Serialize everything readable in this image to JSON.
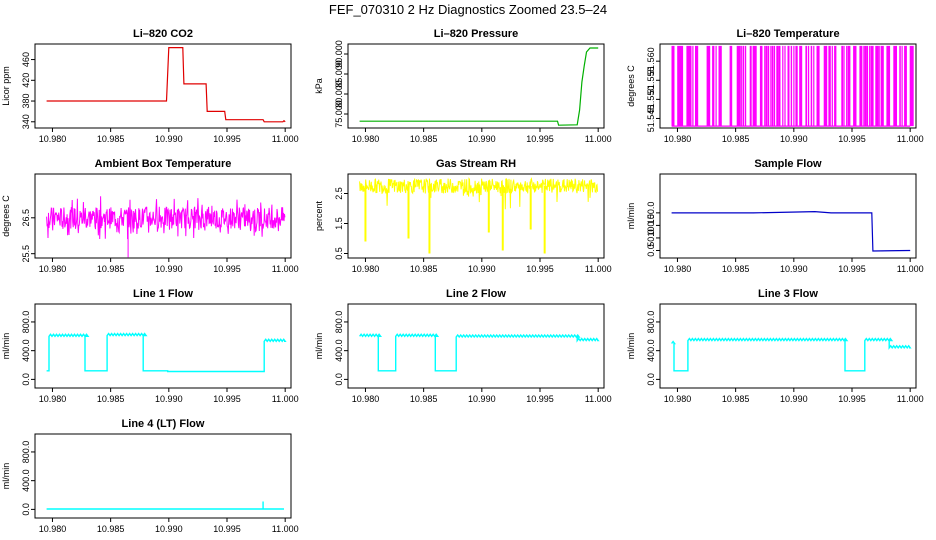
{
  "figure": {
    "title": "FEF_070310  2 Hz Diagnostics Zoomed 23.5–24"
  },
  "colors": {
    "red": "#e00000",
    "green": "#00b000",
    "magenta": "#ff00ff",
    "yellow": "#ffff00",
    "blue": "#0000c8",
    "cyan": "#00ffff"
  },
  "chart_data": [
    {
      "type": "line",
      "title": "Li–820 CO2",
      "ylabel": "Licor ppm",
      "color": "#e00000",
      "xlim": [
        10.9785,
        11.0005
      ],
      "ylim": [
        328,
        490
      ],
      "yticks": [
        340,
        380,
        420,
        460
      ],
      "x": [
        10.9795,
        10.984,
        10.9896,
        10.9898,
        10.99,
        10.9912,
        10.9913,
        10.9925,
        10.9932,
        10.9933,
        10.994,
        10.9948,
        10.9949,
        10.997,
        10.9981,
        10.9982,
        10.9998,
        10.9999,
        11.0
      ],
      "y": [
        380,
        380,
        380,
        380,
        483,
        483,
        413,
        413,
        413,
        360,
        360,
        360,
        344,
        344,
        344,
        340,
        340,
        342,
        340
      ]
    },
    {
      "type": "line",
      "title": "Li–820 Pressure",
      "ylabel": "kPa",
      "color": "#00b000",
      "xlim": [
        10.9785,
        11.0005
      ],
      "ylim": [
        71.5,
        92.5
      ],
      "yticks": [
        75,
        80,
        85,
        90
      ],
      "x": [
        10.9795,
        10.9965,
        10.9966,
        10.9982,
        10.9984,
        10.9986,
        10.9988,
        10.999,
        10.9993,
        11.0
      ],
      "y": [
        73.2,
        73.2,
        72.2,
        72.3,
        76,
        83,
        87,
        90.5,
        91.5,
        91.5
      ]
    },
    {
      "type": "line",
      "title": "Li–820 Temperature",
      "ylabel": "degrees C",
      "color": "#ff00ff",
      "xlim": [
        10.9785,
        11.0005
      ],
      "ylim": [
        51.5425,
        51.5645
      ],
      "yticks": [
        51.545,
        51.55,
        51.555,
        51.56
      ],
      "low": 51.543,
      "high": 51.564,
      "x": [
        10.9795,
        10.98,
        10.9802,
        10.9808,
        10.981,
        10.9815,
        10.9825,
        10.983,
        10.9835,
        10.9845,
        10.985,
        10.9852,
        10.9856,
        10.986,
        10.9865,
        10.987,
        10.9875,
        10.988,
        10.9885,
        10.989,
        10.9895,
        10.99,
        10.9905,
        10.991,
        10.9915,
        10.992,
        10.9925,
        10.993,
        10.9935,
        10.994,
        10.9945,
        10.995,
        10.9955,
        10.996,
        10.9965,
        10.997,
        10.9975,
        10.998,
        10.9985,
        10.999,
        10.9995,
        11.0
      ]
    },
    {
      "type": "line",
      "title": "Ambient Box Temperature",
      "ylabel": "degrees C",
      "color": "#ff00ff",
      "xlim": [
        10.9785,
        11.0005
      ],
      "ylim": [
        25.38,
        27.72
      ],
      "yticks": [
        25.5,
        26.5
      ],
      "base": 26.5,
      "spread": 0.3,
      "spike": {
        "x": 10.9865,
        "y": 25.4
      }
    },
    {
      "type": "line",
      "title": "Gas Stream RH",
      "ylabel": "percent",
      "color": "#ffff00",
      "xlim": [
        10.9785,
        11.0005
      ],
      "ylim": [
        0.35,
        3.15
      ],
      "yticks": [
        0.5,
        1.5,
        2.5
      ],
      "base": 2.75,
      "dips": [
        {
          "x": 10.9855,
          "y": 0.5
        },
        {
          "x": 10.9837,
          "y": 1.0
        },
        {
          "x": 10.9906,
          "y": 1.2
        },
        {
          "x": 10.9918,
          "y": 0.6
        },
        {
          "x": 10.9954,
          "y": 0.5
        },
        {
          "x": 10.9942,
          "y": 1.3
        },
        {
          "x": 10.98,
          "y": 0.9
        }
      ]
    },
    {
      "type": "line",
      "title": "Sample Flow",
      "ylabel": "ml/min",
      "color": "#0000c8",
      "xlim": [
        10.9785,
        11.0005
      ],
      "ylim": [
        -30,
        305
      ],
      "yticks": [
        0,
        50,
        100,
        150
      ],
      "x": [
        10.9795,
        10.9865,
        10.9918,
        10.9932,
        10.9967,
        10.9968,
        10.9999,
        11.0
      ],
      "y": [
        150,
        150,
        155,
        150,
        150,
        -2,
        0,
        0
      ]
    },
    {
      "type": "line",
      "title": "Line 1 Flow",
      "ylabel": "ml/min",
      "color": "#00ffff",
      "xlim": [
        10.9785,
        11.0005
      ],
      "ylim": [
        -120,
        1050
      ],
      "yticks": [
        0,
        400,
        800
      ],
      "segments": [
        [
          10.9795,
          10.9797,
          120
        ],
        [
          10.9797,
          10.9828,
          600
        ],
        [
          10.9828,
          10.9847,
          120
        ],
        [
          10.9847,
          10.9878,
          610
        ],
        [
          10.9878,
          10.9899,
          120
        ],
        [
          10.9899,
          10.9982,
          110
        ],
        [
          10.9982,
          10.9999,
          530
        ]
      ]
    },
    {
      "type": "line",
      "title": "Line 2 Flow",
      "ylabel": "ml/min",
      "color": "#00ffff",
      "xlim": [
        10.9785,
        11.0005
      ],
      "ylim": [
        -120,
        1050
      ],
      "yticks": [
        0,
        400,
        800
      ],
      "segments": [
        [
          10.9795,
          10.9811,
          600
        ],
        [
          10.9811,
          10.9826,
          120
        ],
        [
          10.9826,
          10.986,
          600
        ],
        [
          10.986,
          10.9878,
          120
        ],
        [
          10.9878,
          10.9982,
          590
        ],
        [
          10.9982,
          10.9999,
          540
        ]
      ]
    },
    {
      "type": "line",
      "title": "Line 3 Flow",
      "ylabel": "ml/min",
      "color": "#00ffff",
      "xlim": [
        10.9785,
        11.0005
      ],
      "ylim": [
        -120,
        1050
      ],
      "yticks": [
        0,
        400,
        800
      ],
      "segments": [
        [
          10.9795,
          10.9797,
          500
        ],
        [
          10.9797,
          10.9809,
          120
        ],
        [
          10.9809,
          10.9944,
          540
        ],
        [
          10.9944,
          10.9961,
          120
        ],
        [
          10.9961,
          10.9982,
          540
        ],
        [
          10.9982,
          10.9999,
          440
        ]
      ]
    },
    {
      "type": "line",
      "title": "Line 4 (LT) Flow",
      "ylabel": "ml/min",
      "color": "#00ffff",
      "xlim": [
        10.9785,
        11.0005
      ],
      "ylim": [
        -120,
        1050
      ],
      "yticks": [
        0,
        400,
        800
      ],
      "segments": [
        [
          10.9795,
          10.9999,
          5
        ]
      ],
      "spike": {
        "x": 10.9981,
        "y": 110
      }
    }
  ],
  "xticks": [
    10.98,
    10.985,
    10.99,
    10.995,
    11.0
  ],
  "xtick_labels": [
    "10.980",
    "10.985",
    "10.990",
    "10.995",
    "11.000"
  ]
}
